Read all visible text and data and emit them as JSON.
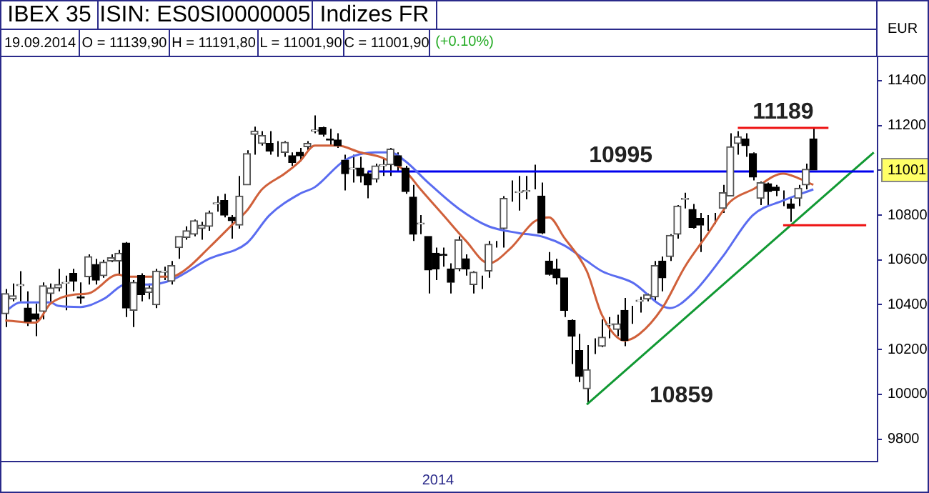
{
  "chart_data": {
    "type": "candlestick",
    "title": "IBEX 35",
    "ylabel": "EUR",
    "xlabel": "2014",
    "annotations": [
      "ISIN: ES0SI0000005",
      "Indizes FR",
      "19.09.2014",
      "O = 11139,90",
      "H = 11191,80",
      "L = 11001,90",
      "C = 11001,90",
      "(+0.10%)",
      {
        "text": "11001",
        "y": 11001
      }
    ],
    "categories": [
      null,
      null,
      null,
      null,
      null,
      null,
      null,
      null,
      null,
      null,
      null,
      null,
      null,
      null,
      null,
      null,
      null,
      null,
      null,
      null,
      null,
      null,
      null,
      null,
      null,
      null,
      null,
      null,
      null,
      null,
      null,
      null,
      null,
      null,
      null,
      null,
      null,
      null,
      null,
      null,
      null,
      null,
      null,
      null,
      null,
      null,
      null,
      null,
      null,
      null,
      null,
      null,
      null,
      null,
      null,
      null,
      null,
      null,
      null,
      null,
      null,
      null,
      null,
      null,
      null,
      null,
      null,
      null,
      null,
      null,
      null,
      null,
      null,
      null,
      null,
      null,
      null,
      null,
      null,
      null,
      null,
      null,
      null,
      null,
      null,
      null,
      null,
      null,
      null,
      null,
      null,
      null,
      null,
      null,
      null,
      null,
      null,
      null,
      null,
      null,
      null,
      null,
      null,
      null,
      null,
      null,
      null,
      null,
      null,
      null,
      null,
      null,
      null,
      null,
      null,
      null
    ],
    "ohlc": [
      [
        10360,
        10470,
        10300,
        10450
      ],
      [
        10425,
        10495,
        10415,
        10440
      ],
      [
        10485,
        10550,
        10415,
        10490
      ],
      [
        10385,
        10460,
        10305,
        10325
      ],
      [
        10360,
        10405,
        10260,
        10335
      ],
      [
        10370,
        10500,
        10335,
        10485
      ],
      [
        10450,
        10495,
        10405,
        10475
      ],
      [
        10475,
        10560,
        10460,
        10490
      ],
      [
        10495,
        10530,
        10375,
        10500
      ],
      [
        10540,
        10560,
        10460,
        10505
      ],
      [
        10435,
        10500,
        10405,
        10430
      ],
      [
        10525,
        10625,
        10490,
        10615
      ],
      [
        10580,
        10605,
        10490,
        10510
      ],
      [
        10530,
        10600,
        10520,
        10590
      ],
      [
        10595,
        10625,
        10590,
        10610
      ],
      [
        10595,
        10645,
        10530,
        10630
      ],
      [
        10675,
        10680,
        10345,
        10385
      ],
      [
        10375,
        10510,
        10300,
        10500
      ],
      [
        10530,
        10540,
        10415,
        10445
      ],
      [
        10455,
        10495,
        10425,
        10475
      ],
      [
        10400,
        10560,
        10385,
        10550
      ],
      [
        10545,
        10570,
        10510,
        10550
      ],
      [
        10505,
        10595,
        10490,
        10575
      ],
      [
        10655,
        10705,
        10605,
        10705
      ],
      [
        10700,
        10750,
        10690,
        10730
      ],
      [
        10715,
        10780,
        10705,
        10775
      ],
      [
        10740,
        10770,
        10690,
        10755
      ],
      [
        10750,
        10820,
        10730,
        10810
      ],
      [
        10850,
        10885,
        10815,
        10855
      ],
      [
        10865,
        10895,
        10790,
        10800
      ],
      [
        10790,
        10800,
        10695,
        10775
      ],
      [
        10755,
        10975,
        10740,
        10885
      ],
      [
        10935,
        11090,
        10935,
        11075
      ],
      [
        11160,
        11195,
        11070,
        11175
      ],
      [
        11120,
        11175,
        11110,
        11155
      ],
      [
        11120,
        11175,
        11070,
        11085
      ],
      [
        11120,
        11130,
        11060,
        11120
      ],
      [
        11080,
        11130,
        11060,
        11125
      ],
      [
        11065,
        11080,
        11020,
        11035
      ],
      [
        11080,
        11100,
        11040,
        11065
      ],
      [
        11105,
        11130,
        11090,
        11120
      ],
      [
        11175,
        11245,
        11165,
        11180
      ],
      [
        11190,
        11195,
        11150,
        11160
      ],
      [
        11140,
        11185,
        11110,
        11135
      ],
      [
        11135,
        11165,
        11100,
        11110
      ],
      [
        11045,
        11070,
        10910,
        10985
      ],
      [
        11005,
        11070,
        10945,
        11010
      ],
      [
        11010,
        11060,
        10945,
        10975
      ],
      [
        10985,
        10995,
        10875,
        10935
      ],
      [
        10960,
        11030,
        10945,
        11020
      ],
      [
        11020,
        11050,
        10975,
        11025
      ],
      [
        11025,
        11100,
        10975,
        11095
      ],
      [
        11065,
        11080,
        10995,
        11020
      ],
      [
        11010,
        11020,
        10895,
        10905
      ],
      [
        10880,
        10935,
        10685,
        10715
      ],
      [
        10760,
        10800,
        10715,
        10765
      ],
      [
        10705,
        10705,
        10450,
        10555
      ],
      [
        10630,
        10655,
        10510,
        10560
      ],
      [
        10625,
        10655,
        10570,
        10620
      ],
      [
        10560,
        10585,
        10450,
        10500
      ],
      [
        10560,
        10705,
        10550,
        10690
      ],
      [
        10605,
        10625,
        10530,
        10560
      ],
      [
        10490,
        10550,
        10450,
        10545
      ],
      [
        10505,
        10530,
        10470,
        10505
      ],
      [
        10550,
        10685,
        10520,
        10670
      ],
      [
        10675,
        10685,
        10655,
        10675
      ],
      [
        10740,
        10885,
        10655,
        10875
      ],
      [
        10905,
        10955,
        10860,
        10905
      ],
      [
        10900,
        10975,
        10820,
        10905
      ],
      [
        10905,
        10975,
        10870,
        10910
      ],
      [
        10950,
        11025,
        10915,
        10950
      ],
      [
        10885,
        10945,
        10715,
        10720
      ],
      [
        10595,
        10635,
        10530,
        10535
      ],
      [
        10560,
        10605,
        10490,
        10520
      ],
      [
        10520,
        10520,
        10345,
        10375
      ],
      [
        10330,
        10335,
        10135,
        10260
      ],
      [
        10195,
        10270,
        10055,
        10080
      ],
      [
        10025,
        10220,
        9955,
        10110
      ],
      [
        10215,
        10250,
        10180,
        10215
      ],
      [
        10215,
        10335,
        10210,
        10255
      ],
      [
        10310,
        10345,
        10250,
        10315
      ],
      [
        10290,
        10355,
        10260,
        10315
      ],
      [
        10375,
        10430,
        10215,
        10240
      ],
      [
        10375,
        10395,
        10315,
        10375
      ],
      [
        10415,
        10435,
        10365,
        10420
      ],
      [
        10425,
        10450,
        10415,
        10445
      ],
      [
        10435,
        10595,
        10415,
        10575
      ],
      [
        10595,
        10615,
        10460,
        10520
      ],
      [
        10615,
        10715,
        10595,
        10710
      ],
      [
        10715,
        10845,
        10695,
        10840
      ],
      [
        10870,
        10900,
        10830,
        10875
      ],
      [
        10825,
        10850,
        10740,
        10745
      ],
      [
        10785,
        10810,
        10635,
        10755
      ],
      [
        10765,
        10800,
        10730,
        10765
      ],
      [
        10785,
        10810,
        10760,
        10785
      ],
      [
        10830,
        10935,
        10810,
        10900
      ],
      [
        10885,
        11165,
        10885,
        11105
      ],
      [
        11120,
        11175,
        11070,
        11150
      ],
      [
        11140,
        11165,
        11060,
        11110
      ],
      [
        11075,
        11080,
        10955,
        10970
      ],
      [
        10875,
        10950,
        10845,
        10945
      ],
      [
        10940,
        10945,
        10840,
        10905
      ],
      [
        10925,
        10935,
        10885,
        10910
      ],
      [
        10895,
        10910,
        10840,
        10895
      ],
      [
        10850,
        10875,
        10770,
        10830
      ],
      [
        10875,
        10935,
        10840,
        10920
      ],
      [
        10935,
        11030,
        10915,
        11005
      ],
      [
        11139.9,
        11191.8,
        11001.9,
        11001.9
      ],
      null,
      null,
      null,
      null,
      null,
      null,
      null,
      null
    ],
    "series": [
      {
        "type": "line",
        "color": "#d0603a",
        "values": [
          10330,
          null,
          null,
          null,
          10320,
          null,
          10405,
          null,
          null,
          10445,
          null,
          10450,
          null,
          null,
          null,
          10535,
          10525,
          null,
          null,
          null,
          null,
          null,
          10525,
          null,
          10560,
          null,
          null,
          10655,
          null,
          null,
          10755,
          null,
          10820,
          null,
          10915,
          null,
          null,
          10985,
          null,
          11040,
          null,
          11110,
          null,
          null,
          11110,
          null,
          null,
          11080,
          null,
          null,
          11055,
          null,
          null,
          10995,
          null,
          10915,
          null,
          null,
          10800,
          null,
          null,
          10685,
          null,
          null,
          10585,
          null,
          null,
          10655,
          null,
          null,
          10770,
          null,
          10790,
          null,
          10700,
          null,
          null,
          10550,
          null,
          10355,
          null,
          null,
          10240,
          null,
          10270,
          null,
          null,
          10385,
          null,
          null,
          10570,
          null,
          null,
          10715,
          null,
          null,
          10860,
          null,
          null,
          10915,
          null,
          null,
          null,
          10985,
          null,
          10965,
          null,
          10935,
          null,
          null,
          null,
          null,
          null,
          null,
          null,
          null
        ]
      },
      {
        "type": "line",
        "color": "#5a6cf0",
        "values": [
          10370,
          null,
          10410,
          null,
          null,
          null,
          10410,
          10395,
          null,
          null,
          10390,
          null,
          null,
          10425,
          null,
          null,
          10490,
          null,
          null,
          10490,
          null,
          null,
          10510,
          null,
          null,
          null,
          null,
          10605,
          null,
          null,
          null,
          null,
          10675,
          null,
          null,
          10800,
          null,
          null,
          null,
          10895,
          null,
          10925,
          null,
          null,
          null,
          11045,
          null,
          null,
          null,
          11080,
          null,
          11080,
          null,
          11040,
          null,
          null,
          10945,
          null,
          null,
          null,
          10830,
          null,
          null,
          null,
          10750,
          null,
          null,
          null,
          10720,
          null,
          null,
          10705,
          null,
          null,
          10665,
          null,
          null,
          10595,
          null,
          10550,
          null,
          null,
          null,
          10500,
          null,
          null,
          null,
          null,
          10385,
          null,
          null,
          10450,
          null,
          null,
          null,
          10615,
          null,
          null,
          null,
          10800,
          null,
          null,
          null,
          10865,
          null,
          null,
          null,
          10915,
          null,
          null,
          null,
          null,
          null,
          null,
          null,
          null
        ]
      },
      {
        "type": "line",
        "name": "10995",
        "color": "#0000ee",
        "values": [
          null,
          null,
          null,
          null,
          null,
          null,
          null,
          null,
          null,
          null,
          null,
          null,
          null,
          null,
          null,
          null,
          null,
          null,
          null,
          null,
          null,
          null,
          null,
          null,
          null,
          null,
          null,
          null,
          null,
          null,
          null,
          null,
          null,
          null,
          null,
          null,
          null,
          null,
          null,
          null,
          null,
          null,
          null,
          null,
          null,
          null,
          null,
          null,
          10995,
          null,
          null,
          null,
          null,
          null,
          null,
          null,
          null,
          null,
          null,
          null,
          null,
          null,
          null,
          null,
          null,
          null,
          null,
          null,
          null,
          null,
          null,
          null,
          null,
          null,
          null,
          null,
          null,
          null,
          null,
          null,
          null,
          null,
          null,
          null,
          null,
          null,
          null,
          null,
          null,
          null,
          null,
          null,
          null,
          null,
          null,
          null,
          null,
          null,
          null,
          null,
          null,
          null,
          null,
          null,
          null,
          null,
          null,
          null,
          null,
          null,
          null,
          null,
          null,
          null,
          null,
          10995
        ]
      },
      {
        "type": "line",
        "name": "11189",
        "color": "#ee1111",
        "values": [
          null,
          null,
          null,
          null,
          null,
          null,
          null,
          null,
          null,
          null,
          null,
          null,
          null,
          null,
          null,
          null,
          null,
          null,
          null,
          null,
          null,
          null,
          null,
          null,
          null,
          null,
          null,
          null,
          null,
          null,
          null,
          null,
          null,
          null,
          null,
          null,
          null,
          null,
          null,
          null,
          null,
          null,
          null,
          null,
          null,
          null,
          null,
          null,
          null,
          null,
          null,
          null,
          null,
          null,
          null,
          null,
          null,
          null,
          null,
          null,
          null,
          null,
          null,
          null,
          null,
          null,
          null,
          null,
          null,
          null,
          null,
          null,
          null,
          null,
          null,
          null,
          null,
          null,
          null,
          null,
          null,
          null,
          null,
          null,
          null,
          null,
          null,
          null,
          null,
          null,
          null,
          null,
          null,
          null,
          null,
          null,
          null,
          11189,
          null,
          null,
          null,
          null,
          null,
          null,
          null,
          null,
          null,
          null,
          null,
          11189,
          null,
          null,
          null,
          null,
          null,
          null
        ]
      },
      {
        "type": "line",
        "color": "#ee1111",
        "values": [
          null,
          null,
          null,
          null,
          null,
          null,
          null,
          null,
          null,
          null,
          null,
          null,
          null,
          null,
          null,
          null,
          null,
          null,
          null,
          null,
          null,
          null,
          null,
          null,
          null,
          null,
          null,
          null,
          null,
          null,
          null,
          null,
          null,
          null,
          null,
          null,
          null,
          null,
          null,
          null,
          null,
          null,
          null,
          null,
          null,
          null,
          null,
          null,
          null,
          null,
          null,
          null,
          null,
          null,
          null,
          null,
          null,
          null,
          null,
          null,
          null,
          null,
          null,
          null,
          null,
          null,
          null,
          null,
          null,
          null,
          null,
          null,
          null,
          null,
          null,
          null,
          null,
          null,
          null,
          null,
          null,
          null,
          null,
          null,
          null,
          null,
          null,
          null,
          null,
          null,
          null,
          null,
          null,
          null,
          null,
          null,
          null,
          null,
          null,
          null,
          null,
          null,
          null,
          10755,
          null,
          null,
          null,
          null,
          null,
          null,
          null,
          null,
          null,
          null,
          10755,
          null
        ]
      },
      {
        "type": "line",
        "name": "10859",
        "color": "#119933",
        "values": [
          null,
          null,
          null,
          null,
          null,
          null,
          null,
          null,
          null,
          null,
          null,
          null,
          null,
          null,
          null,
          null,
          null,
          null,
          null,
          null,
          null,
          null,
          null,
          null,
          null,
          null,
          null,
          null,
          null,
          null,
          null,
          null,
          null,
          null,
          null,
          null,
          null,
          null,
          null,
          null,
          null,
          null,
          null,
          null,
          null,
          null,
          null,
          null,
          null,
          null,
          null,
          null,
          null,
          null,
          null,
          null,
          null,
          null,
          null,
          null,
          null,
          null,
          null,
          null,
          null,
          null,
          null,
          null,
          null,
          null,
          null,
          null,
          null,
          null,
          null,
          null,
          null,
          9955,
          null,
          null,
          null,
          null,
          null,
          null,
          null,
          null,
          null,
          null,
          null,
          null,
          null,
          null,
          null,
          null,
          null,
          null,
          null,
          null,
          null,
          null,
          null,
          null,
          null,
          null,
          null,
          null,
          null,
          null,
          null,
          null,
          null,
          null,
          null,
          null,
          null,
          11080
        ]
      }
    ],
    "ylim": [
      9700,
      11505
    ],
    "yticks": [
      9800,
      10000,
      10200,
      10400,
      10600,
      10800,
      {
        "value": 11000,
        "label": null
      },
      11200,
      11400
    ]
  }
}
